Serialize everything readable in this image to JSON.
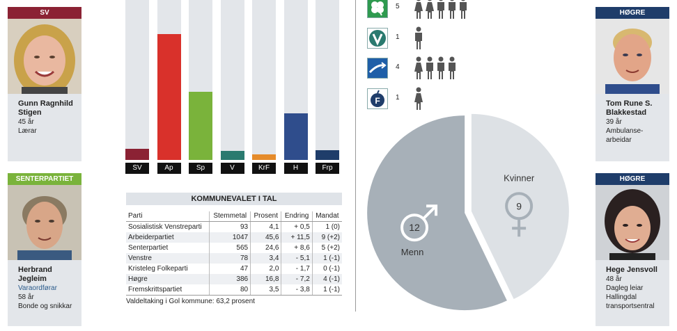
{
  "people": {
    "p1": {
      "party": "SV",
      "party_color": "#8b2234",
      "name": "Gunn Ragnhild Stigen",
      "age": "45 år",
      "job": "Lærar"
    },
    "p2": {
      "party": "SENTERPARTIET",
      "party_color": "#7ab33b",
      "name": "Herbrand Jegleim",
      "role": "Varaordførar",
      "age": "58 år",
      "job": "Bonde og snikkar"
    },
    "p3": {
      "party": "HØGRE",
      "party_color": "#1f3d6a",
      "name": "Tom Rune S. Blakkestad",
      "age": "39 år",
      "job": "Ambulanse-arbeidar"
    },
    "p4": {
      "party": "HØGRE",
      "party_color": "#1f3d6a",
      "name": "Hege Jensvoll",
      "age": "48 år",
      "job": "Dagleg leiar Hallingdal transportsentral"
    }
  },
  "chart_data": {
    "type": "bar",
    "categories": [
      "SV",
      "Ap",
      "Sp",
      "V",
      "KrF",
      "H",
      "Frp"
    ],
    "values": [
      4.1,
      45.6,
      24.6,
      3.4,
      2.0,
      16.8,
      3.5
    ],
    "colors": [
      "#8b2234",
      "#d9312b",
      "#7ab33b",
      "#2a7a6f",
      "#e58b2b",
      "#2f4d8c",
      "#1f3d6a"
    ],
    "ylim": [
      0,
      58
    ],
    "grid": false
  },
  "table": {
    "title": "KOMMUNEVALET I TAL",
    "headers": [
      "Parti",
      "Stemmetal",
      "Prosent",
      "Endring",
      "Mandat"
    ],
    "rows": [
      [
        "Sosialistisk Venstreparti",
        "93",
        "4,1",
        "+ 0,5",
        "1 (0)"
      ],
      [
        "Arbeiderpartiet",
        "1047",
        "45,6",
        "+ 11,5",
        "9 (+2)"
      ],
      [
        "Senterpartiet",
        "565",
        "24,6",
        "+ 8,6",
        "5 (+2)"
      ],
      [
        "Venstre",
        "78",
        "3,4",
        "- 5,1",
        "1 (-1)"
      ],
      [
        "Kristeleg Folkeparti",
        "47",
        "2,0",
        "- 1,7",
        "0 (-1)"
      ],
      [
        "Høgre",
        "386",
        "16,8",
        "- 7,2",
        "4 (-1)"
      ],
      [
        "Fremskrittspartiet",
        "80",
        "3,5",
        "- 3,8",
        "1 (-1)"
      ]
    ],
    "footer": "Valdeltaking i Gol kommune: 63,2 prosent"
  },
  "party_rows": [
    {
      "icon": "clover-icon",
      "color": "#2e9a4f",
      "count": "5",
      "women": 2,
      "men": 3
    },
    {
      "icon": "venstre-v-icon",
      "color": "#2a7a6f",
      "count": "1",
      "women": 0,
      "men": 1
    },
    {
      "icon": "hogre-arrow-icon",
      "color": "#1f5fa8",
      "count": "4",
      "women": 1,
      "men": 3
    },
    {
      "icon": "frp-apple-icon",
      "color": "#1f3d6a",
      "count": "1",
      "women": 1,
      "men": 0
    }
  ],
  "gender": {
    "men_label": "Menn",
    "men_count": "12",
    "men_value": 12,
    "women_label": "Kvinner",
    "women_count": "9",
    "women_value": 9,
    "men_color": "#a7b0b8",
    "women_color": "#dde1e5"
  }
}
